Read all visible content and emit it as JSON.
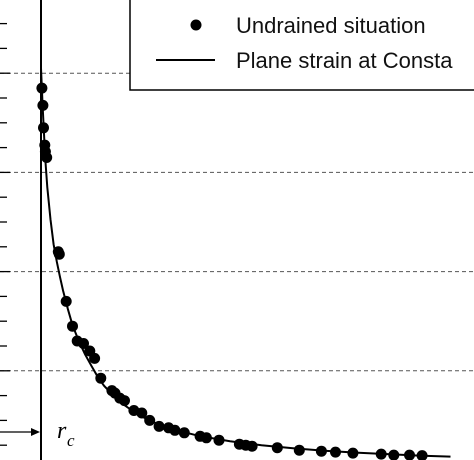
{
  "chart_data": {
    "type": "scatter",
    "title": "",
    "xlabel": "",
    "ylabel": "",
    "xlim": [
      0,
      14
    ],
    "ylim": [
      0,
      9
    ],
    "grid": "horizontal dashed",
    "legend_position": "top-right",
    "annotation": {
      "text": "r",
      "subscript": "c",
      "x": 1.0
    },
    "series": [
      {
        "name": "Undrained situation",
        "kind": "markers",
        "x": [
          1.03,
          1.06,
          1.08,
          1.12,
          1.14,
          1.18,
          1.55,
          1.58,
          1.8,
          2.0,
          2.15,
          2.35,
          2.55,
          2.7,
          2.9,
          3.25,
          3.35,
          3.5,
          3.65,
          3.95,
          4.2,
          4.45,
          4.75,
          5.05,
          5.25,
          5.55,
          6.05,
          6.25,
          6.65,
          7.3,
          7.5,
          7.7,
          8.5,
          9.2,
          9.9,
          10.35,
          10.9,
          11.8,
          12.2,
          12.7,
          13.1
        ],
        "y": [
          7.7,
          7.35,
          6.9,
          6.55,
          6.42,
          6.3,
          4.4,
          4.35,
          3.4,
          2.9,
          2.6,
          2.55,
          2.4,
          2.25,
          1.85,
          1.6,
          1.55,
          1.45,
          1.4,
          1.2,
          1.15,
          1.0,
          0.88,
          0.85,
          0.8,
          0.75,
          0.68,
          0.65,
          0.6,
          0.52,
          0.5,
          0.48,
          0.45,
          0.4,
          0.38,
          0.36,
          0.34,
          0.32,
          0.3,
          0.3,
          0.29
        ]
      },
      {
        "name": "Plane strain at Consta",
        "kind": "line",
        "x": [
          1.0,
          1.05,
          1.1,
          1.15,
          1.2,
          1.3,
          1.4,
          1.5,
          1.6,
          1.7,
          1.85,
          2.0,
          2.2,
          2.4,
          2.6,
          2.8,
          3.0,
          3.3,
          3.6,
          4.0,
          4.5,
          5.0,
          5.5,
          6.0,
          7.0,
          8.0,
          9.0,
          10.0,
          11.0,
          12.0,
          13.0,
          14.0
        ],
        "y": [
          8.1,
          7.35,
          6.7,
          6.15,
          5.7,
          5.05,
          4.55,
          4.2,
          3.9,
          3.62,
          3.25,
          2.92,
          2.6,
          2.33,
          2.1,
          1.88,
          1.7,
          1.5,
          1.33,
          1.15,
          0.98,
          0.86,
          0.77,
          0.69,
          0.58,
          0.5,
          0.44,
          0.39,
          0.35,
          0.32,
          0.29,
          0.27
        ]
      }
    ]
  }
}
